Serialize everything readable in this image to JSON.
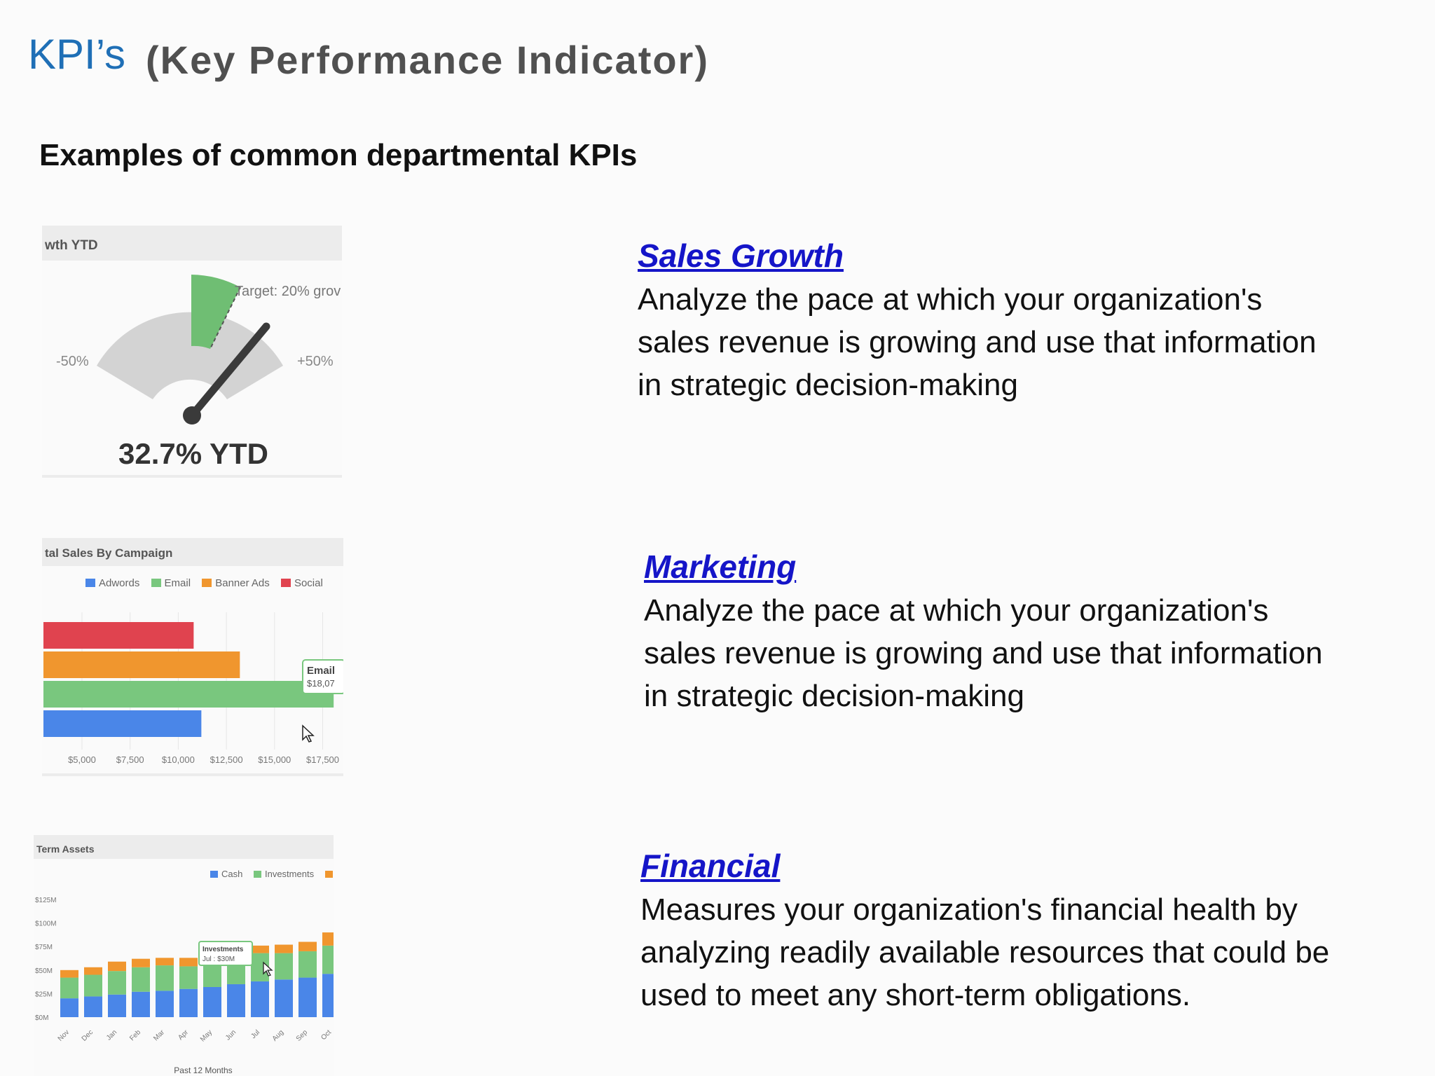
{
  "header": {
    "title": "KPI’s",
    "subtitle": "(Key Performance Indicator)"
  },
  "section_title": "Examples of common departmental KPIs",
  "kpis": [
    {
      "heading": "Sales Growth",
      "description": "Analyze the pace at which your organization's sales revenue is growing and use that information in strategic decision-making"
    },
    {
      "heading": "Marketing",
      "description": "Analyze the pace at which your organization's sales revenue is growing and use that information in strategic decision-making"
    },
    {
      "heading": "Financial",
      "description": "Measures your organization's financial health by analyzing readily available resources that could be used to meet any short-term obligations."
    }
  ],
  "colors": {
    "title": "#1f6fb6",
    "link": "#1515c8",
    "blue": "#4a86e8",
    "green": "#79c77e",
    "orange": "#f0962e",
    "red": "#e0434f",
    "gauge_gray": "#d3d3d3",
    "gauge_green": "#6fbe73"
  },
  "chart_data": [
    {
      "type": "gauge",
      "title": "wth YTD",
      "value": 32.7,
      "value_label": "32.7% YTD",
      "range": [
        -50,
        50
      ],
      "min_label": "-50%",
      "max_label": "+50%",
      "target": 20,
      "target_label": "Target: 20% grov"
    },
    {
      "type": "bar",
      "title": "tal Sales By Campaign",
      "categories": [
        "Social",
        "Banner Ads",
        "Email",
        "Adwords"
      ],
      "values": [
        10800,
        13200,
        18070,
        11200
      ],
      "legend": [
        "Adwords",
        "Email",
        "Banner Ads",
        "Social"
      ],
      "tooltip": {
        "name": "Email",
        "value": "$18,07"
      },
      "xticks": [
        "$5,000",
        "$7,500",
        "$10,000",
        "$12,500",
        "$15,000",
        "$17,500"
      ],
      "xlim": [
        3000,
        18500
      ]
    },
    {
      "type": "bar",
      "stacked": true,
      "title": "Term Assets",
      "categories": [
        "Nov",
        "Dec",
        "Jan",
        "Feb",
        "Mar",
        "Apr",
        "May",
        "Jun",
        "Jul",
        "Aug",
        "Sep",
        "Oct"
      ],
      "series": [
        {
          "name": "Cash",
          "values": [
            20,
            22,
            24,
            27,
            28,
            30,
            32,
            35,
            38,
            40,
            42,
            46
          ]
        },
        {
          "name": "Investments",
          "values": [
            22,
            23,
            25,
            26,
            27,
            24,
            28,
            25,
            30,
            28,
            28,
            30
          ]
        },
        {
          "name": "",
          "values": [
            8,
            8,
            10,
            9,
            8,
            9,
            10,
            10,
            8,
            9,
            10,
            14
          ]
        }
      ],
      "legend": [
        "Cash",
        "Investments"
      ],
      "yticks": [
        "$125M",
        "$100M",
        "$75M",
        "$50M",
        "$25M",
        "$0M"
      ],
      "ylim": [
        0,
        125
      ],
      "tooltip": {
        "name": "Investments",
        "value": "Jul : $30M"
      },
      "xlabel": "Past 12 Months"
    }
  ]
}
